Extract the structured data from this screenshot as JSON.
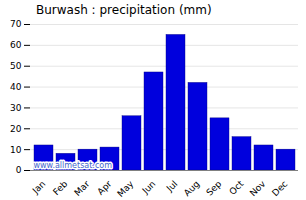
{
  "chart_data": {
    "type": "bar",
    "title": "Burwash : precipitation (mm)",
    "categories": [
      "Jan",
      "Feb",
      "Mar",
      "Apr",
      "May",
      "Jun",
      "Jul",
      "Aug",
      "Sep",
      "Oct",
      "Nov",
      "Dec"
    ],
    "values": [
      12,
      8,
      10,
      11,
      26,
      47,
      65,
      42,
      25,
      16,
      12,
      10
    ],
    "color": "#0000dd",
    "ylim": [
      0,
      70
    ],
    "yticks": [
      0,
      10,
      20,
      30,
      40,
      50,
      60,
      70
    ],
    "grid": true,
    "annotations": [
      "www.allmetsat.com"
    ]
  }
}
